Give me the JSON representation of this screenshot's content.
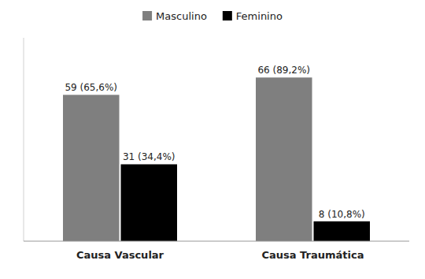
{
  "chart_data": {
    "type": "bar",
    "categories": [
      "Causa Vascular",
      "Causa Traumática"
    ],
    "series": [
      {
        "name": "Masculino",
        "color": "#7f7f7f",
        "values": [
          59,
          66
        ],
        "value_labels": [
          "59 (65,6%)",
          "66 (89,2%)"
        ]
      },
      {
        "name": "Feminino",
        "color": "#000000",
        "values": [
          31,
          8
        ],
        "value_labels": [
          "31 (34,4%)",
          "8 (10,8%)"
        ]
      }
    ],
    "ylim": [
      0,
      82
    ],
    "tick_labels": "x",
    "data_labels": true,
    "legend": "top",
    "grid": false
  }
}
